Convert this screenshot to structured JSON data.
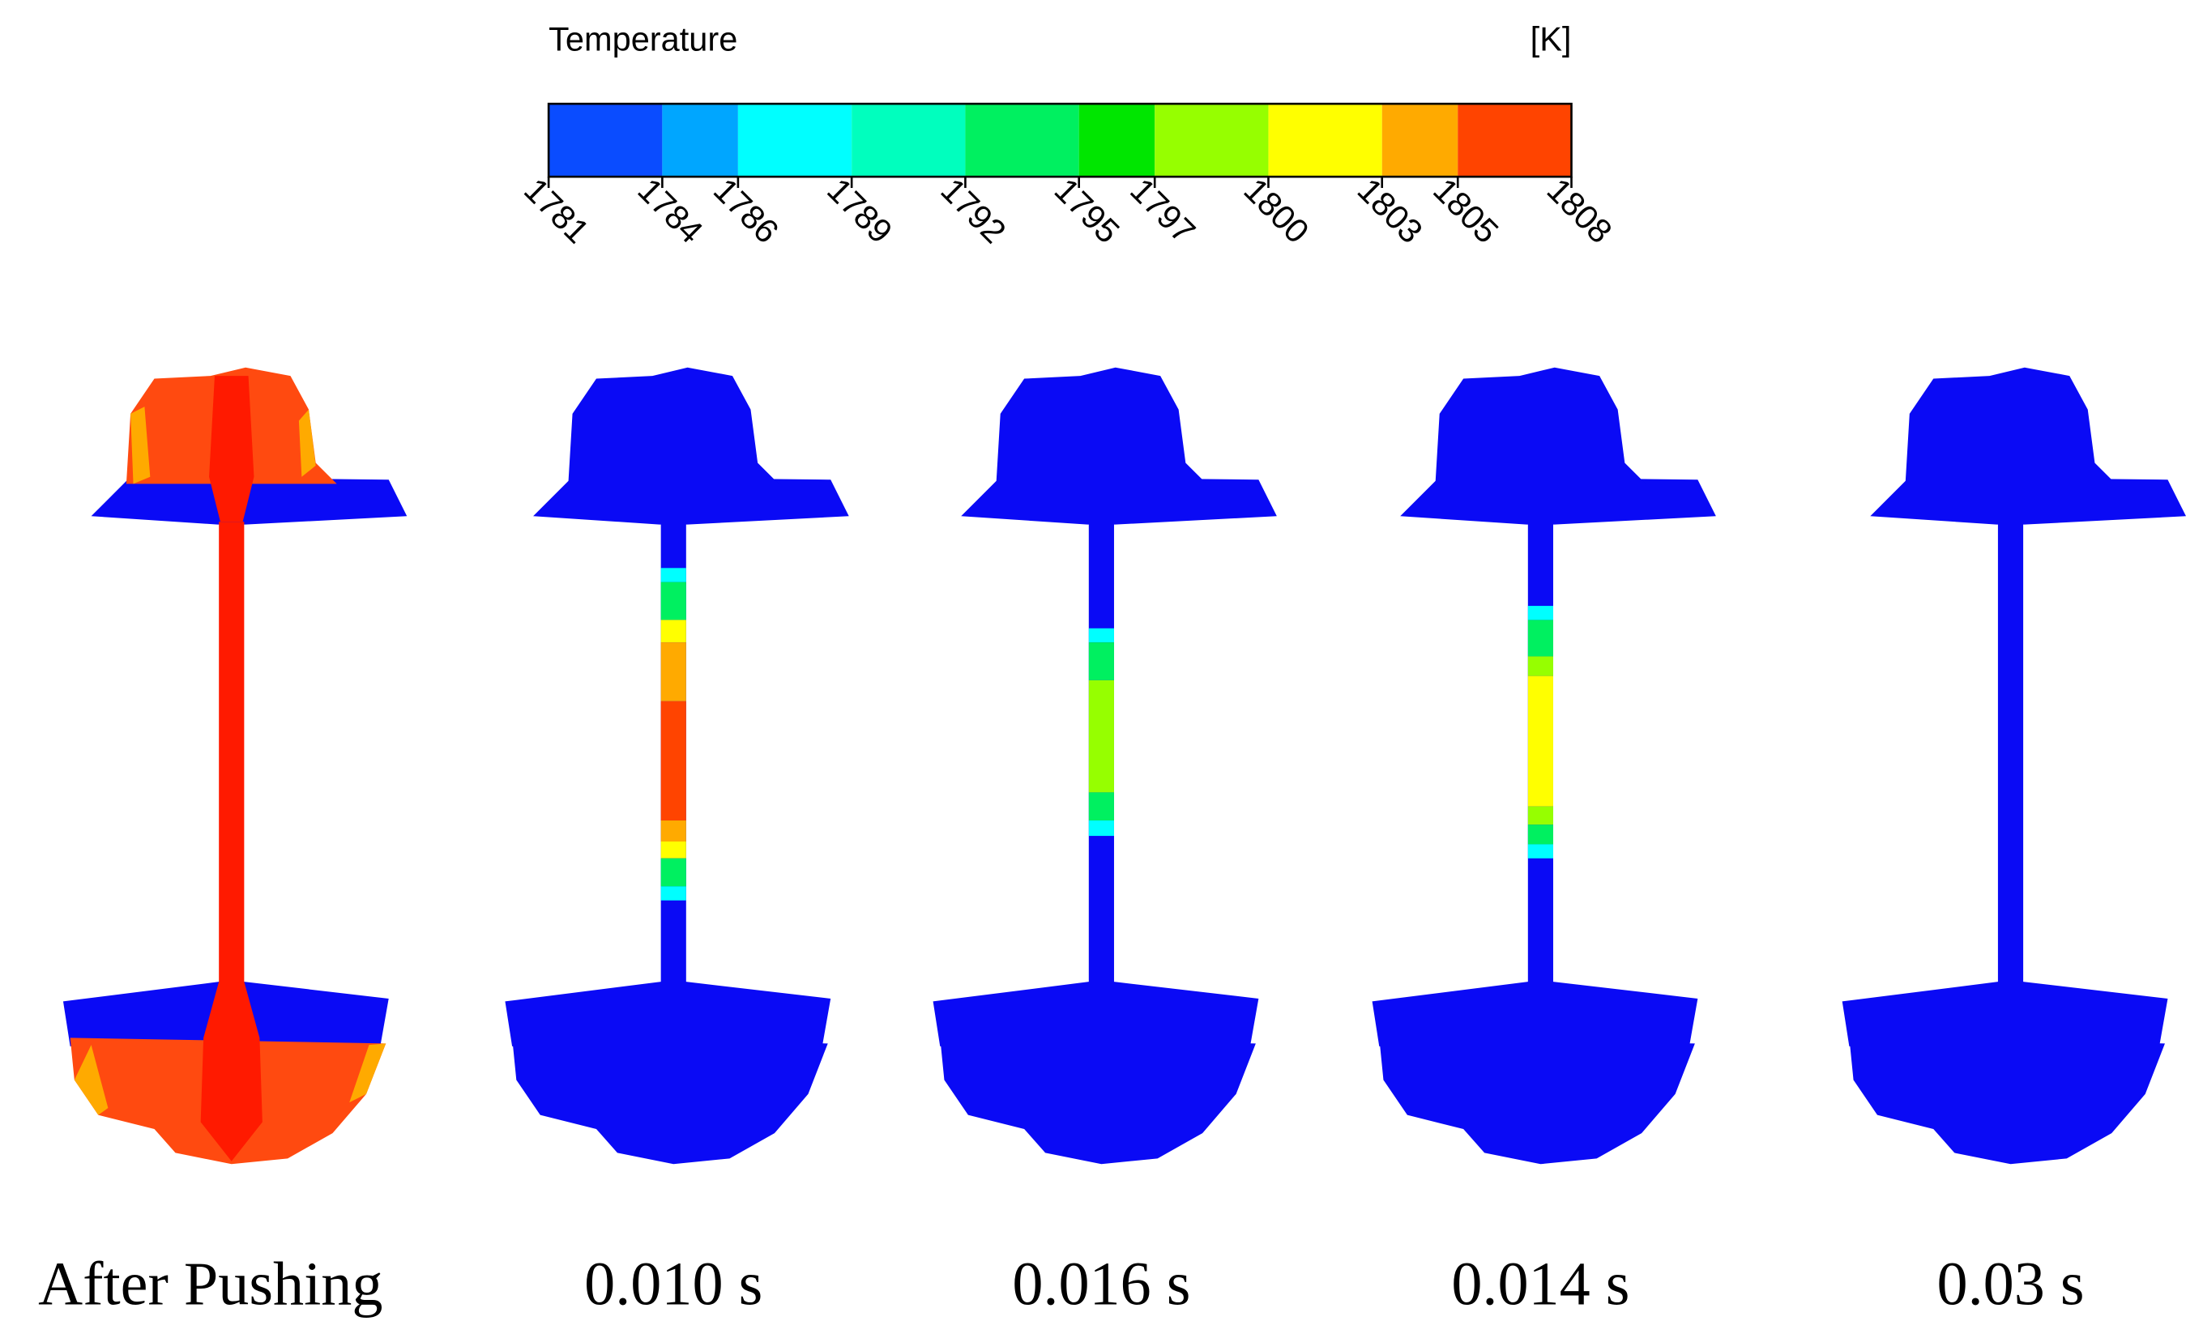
{
  "colorbar": {
    "title": "Temperature",
    "unit": "[K]",
    "ticks": [
      1781,
      1784,
      1786,
      1789,
      1792,
      1795,
      1797,
      1800,
      1803,
      1805,
      1808
    ],
    "colors": [
      "#0a4cff",
      "#00a6ff",
      "#00ffff",
      "#00ffbe",
      "#00f060",
      "#00e600",
      "#96ff00",
      "#ffff00",
      "#ffaa00",
      "#ff4400"
    ]
  },
  "panels": [
    {
      "label": "After Pushing"
    },
    {
      "label": "0.010 s"
    },
    {
      "label": "0.016 s"
    },
    {
      "label": "0.014 s"
    },
    {
      "label": "0.03 s"
    }
  ]
}
